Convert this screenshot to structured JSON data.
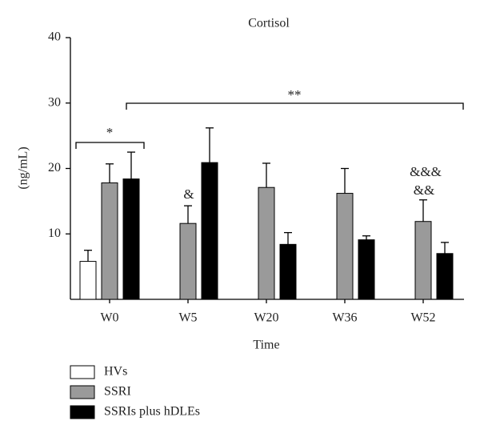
{
  "chart_data": {
    "type": "bar",
    "title": "Cortisol",
    "y_label": "(ng/mL)",
    "x_label": "Time",
    "categories": [
      "W0",
      "W5",
      "W20",
      "W36",
      "W52"
    ],
    "series": [
      {
        "name": "HVs",
        "color": "#ffffff",
        "values": [
          5.8,
          null,
          null,
          null,
          null
        ],
        "errors": [
          1.7,
          null,
          null,
          null,
          null
        ]
      },
      {
        "name": "SSRI",
        "color": "#9a9a9a",
        "values": [
          17.8,
          11.6,
          17.1,
          16.2,
          11.9
        ],
        "errors": [
          2.9,
          2.7,
          3.7,
          3.8,
          3.3
        ]
      },
      {
        "name": "SSRIs plus hDLEs",
        "color": "#000000",
        "values": [
          18.4,
          20.9,
          8.4,
          9.1,
          7.0
        ],
        "errors": [
          4.1,
          5.3,
          1.8,
          0.6,
          1.7
        ]
      }
    ],
    "ylim": [
      0,
      40
    ],
    "yticks": [
      10,
      20,
      30,
      40
    ],
    "annotations": [
      "*",
      "**",
      "&",
      "&&&",
      "&&"
    ]
  }
}
